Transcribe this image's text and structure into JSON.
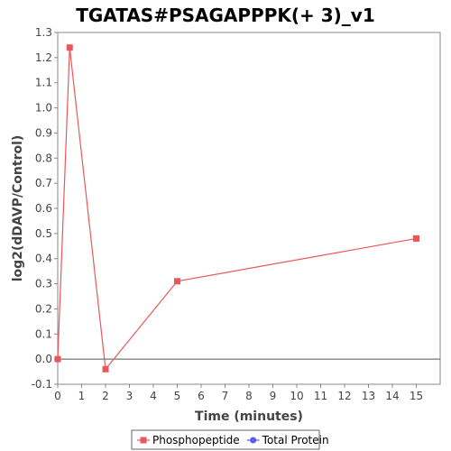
{
  "chart_data": {
    "type": "line",
    "title": "TGATAS#PSAGAPPPK(+ 3)_v1",
    "xlabel": "Time (minutes)",
    "ylabel": "log2(dDAVP/Control)",
    "xlim": [
      0,
      16
    ],
    "ylim": [
      -0.1,
      1.3
    ],
    "x_ticks": [
      0,
      1,
      2,
      3,
      4,
      5,
      6,
      7,
      8,
      9,
      10,
      11,
      12,
      13,
      14,
      15
    ],
    "y_ticks": [
      -0.1,
      0.0,
      0.1,
      0.2,
      0.3,
      0.4,
      0.5,
      0.6,
      0.7,
      0.8,
      0.9,
      1.0,
      1.1,
      1.2,
      1.3
    ],
    "x_tick_labels": [
      "0",
      "1",
      "2",
      "3",
      "4",
      "5",
      "6",
      "7",
      "8",
      "9",
      "10",
      "11",
      "12",
      "13",
      "14",
      "15"
    ],
    "y_tick_labels": [
      "-0.1",
      "0.0",
      "0.1",
      "0.2",
      "0.3",
      "0.4",
      "0.5",
      "0.6",
      "0.7",
      "0.8",
      "0.9",
      "1.0",
      "1.1",
      "1.2",
      "1.3"
    ],
    "zero_line": true,
    "grid": false,
    "legend_position": "bottom",
    "series": [
      {
        "name": "Phosphopeptide",
        "marker": "square",
        "color": "#e8585b",
        "x": [
          0,
          0.5,
          2,
          5,
          15
        ],
        "y": [
          0.0,
          1.24,
          -0.04,
          0.31,
          0.48
        ]
      },
      {
        "name": "Total Protein",
        "marker": "circle",
        "color": "#5b5bf0",
        "x": [],
        "y": []
      }
    ]
  }
}
